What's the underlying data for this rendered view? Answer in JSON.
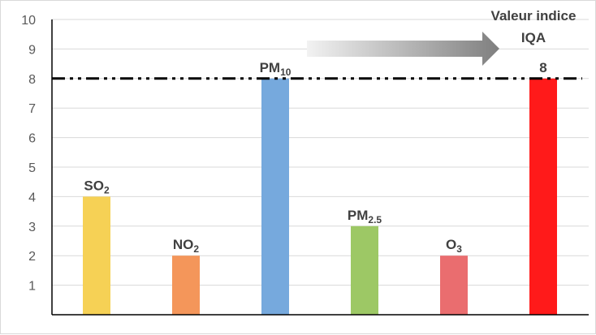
{
  "chart_data": {
    "type": "bar",
    "ylim": [
      0,
      10
    ],
    "yticks": [
      1,
      2,
      3,
      4,
      5,
      6,
      7,
      8,
      9,
      10
    ],
    "grid": true,
    "legend": "none",
    "bars": [
      {
        "label": "SO",
        "sub": "2",
        "value": 4,
        "color": "#f6d155"
      },
      {
        "label": "NO",
        "sub": "2",
        "value": 2,
        "color": "#f4965a"
      },
      {
        "label": "PM",
        "sub": "10",
        "value": 8,
        "color": "#76a9dd"
      },
      {
        "label": "PM",
        "sub": "2.5",
        "value": 3,
        "color": "#9dc865"
      },
      {
        "label": "O",
        "sub": "3",
        "value": 2,
        "color": "#ea6d6f"
      },
      {
        "label": "8",
        "sub": "",
        "value": 8,
        "color": "#ff1a1a"
      }
    ],
    "reference_line": {
      "value": 8,
      "style": "dash-dot-dot",
      "color": "#000000"
    },
    "annotation": {
      "line1": "Valeur indice",
      "line2": "IQA"
    },
    "arrow_colors": [
      "#f2f2f2",
      "#7f7f7f"
    ]
  }
}
